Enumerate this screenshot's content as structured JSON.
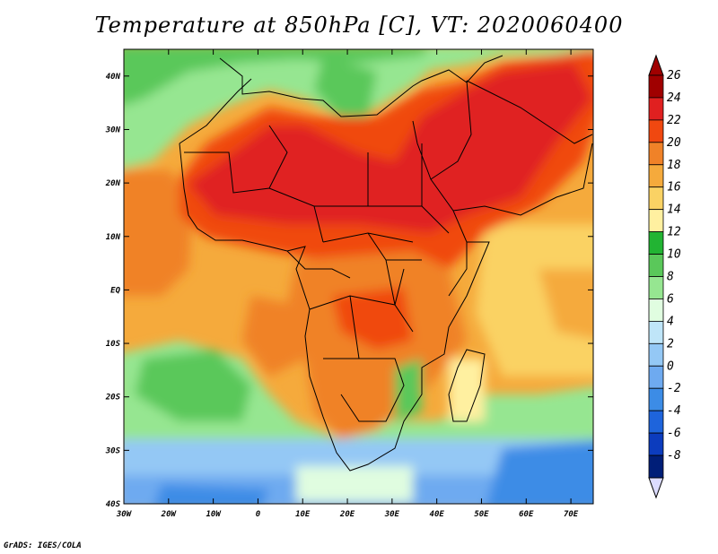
{
  "title": "Temperature at 850hPa [C], VT: 2020060400",
  "credit": "GrADS: IGES/COLA",
  "map": {
    "lon_range": [
      -30,
      75
    ],
    "lat_range": [
      -40,
      45
    ],
    "lon_ticks": [
      {
        "value": -30,
        "label": "30W"
      },
      {
        "value": -20,
        "label": "20W"
      },
      {
        "value": -10,
        "label": "10W"
      },
      {
        "value": 0,
        "label": "0"
      },
      {
        "value": 10,
        "label": "10E"
      },
      {
        "value": 20,
        "label": "20E"
      },
      {
        "value": 30,
        "label": "30E"
      },
      {
        "value": 40,
        "label": "40E"
      },
      {
        "value": 50,
        "label": "50E"
      },
      {
        "value": 60,
        "label": "60E"
      },
      {
        "value": 70,
        "label": "70E"
      }
    ],
    "lat_ticks": [
      {
        "value": 40,
        "label": "40N"
      },
      {
        "value": 30,
        "label": "30N"
      },
      {
        "value": 20,
        "label": "20N"
      },
      {
        "value": 10,
        "label": "10N"
      },
      {
        "value": 0,
        "label": "EQ"
      },
      {
        "value": -10,
        "label": "10S"
      },
      {
        "value": -20,
        "label": "20S"
      },
      {
        "value": -30,
        "label": "30S"
      },
      {
        "value": -40,
        "label": "40S"
      }
    ]
  },
  "colorbar": {
    "labels": [
      "26",
      "24",
      "22",
      "20",
      "18",
      "16",
      "14",
      "12",
      "10",
      "8",
      "6",
      "4",
      "2",
      "0",
      "-2",
      "-4",
      "-6",
      "-8"
    ],
    "colors": [
      "#a00000",
      "#e02020",
      "#f04810",
      "#f08228",
      "#f5aa3c",
      "#fad264",
      "#fff0a0",
      "#22b433",
      "#5ac85a",
      "#96e691",
      "#e0fde0",
      "#bfe5f8",
      "#94c8f5",
      "#6eaaf0",
      "#3c8ce6",
      "#1e64dc",
      "#0c3cbe",
      "#001e78"
    ],
    "under_color": "#dcdcff",
    "over_color": "#a00000"
  }
}
